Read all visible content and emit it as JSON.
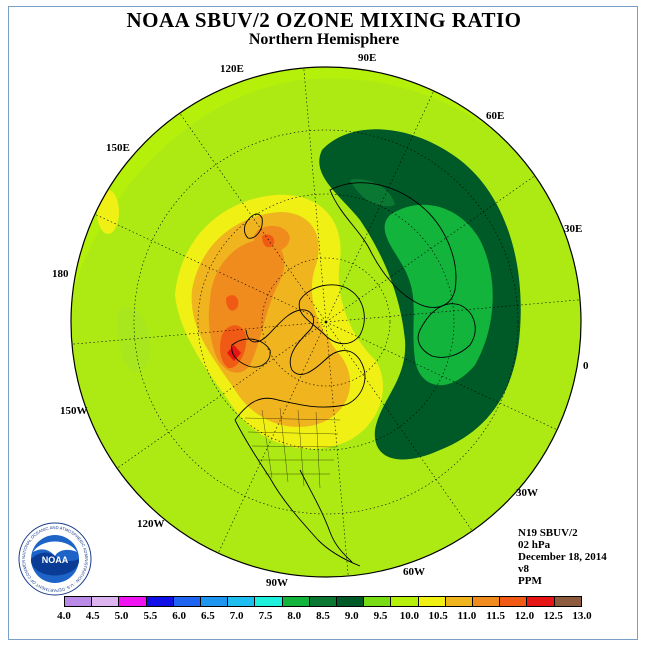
{
  "title": "NOAA SBUV/2 OZONE MIXING RATIO",
  "subtitle": "Northern Hemisphere",
  "longitude_labels": {
    "l90e": "90E",
    "l60e": "60E",
    "l30e": "30E",
    "l0": "0",
    "l30w": "30W",
    "l60w": "60W",
    "l90w": "90W",
    "l120w": "120W",
    "l150w": "150W",
    "l180": "180",
    "l150e": "150E",
    "l120e": "120E"
  },
  "info": {
    "satellite": "N19 SBUV/2",
    "level": "02 hPa",
    "date": "December 18, 2014",
    "version": "v8",
    "units": "PPM"
  },
  "logo": {
    "text": "NOAA",
    "ring_text": "NATIONAL OCEANIC AND ATMOSPHERIC ADMINISTRATION · U.S. DEPARTMENT OF COMMERCE"
  },
  "colorbar": {
    "ticks": [
      "4.0",
      "4.5",
      "5.0",
      "5.5",
      "6.0",
      "6.5",
      "7.0",
      "7.5",
      "8.0",
      "8.5",
      "9.0",
      "9.5",
      "10.0",
      "10.5",
      "11.0",
      "11.5",
      "12.0",
      "12.5",
      "13.0"
    ],
    "colors": [
      "#b98ae6",
      "#dcb4f0",
      "#f014f0",
      "#1010e6",
      "#1e64f0",
      "#1e96f0",
      "#1ebef0",
      "#1ef0dc",
      "#12b43c",
      "#0a7832",
      "#005a28",
      "#78dc14",
      "#b4f00a",
      "#f0f014",
      "#f0b41e",
      "#f08c1e",
      "#f05a14",
      "#e61414",
      "#8c5a3c"
    ],
    "min": 4.0,
    "max": 13.0
  },
  "map": {
    "background_level_color": "#a8e61e",
    "ozone_max_region": "12.0-12.5 over Alaska/Pacific",
    "ozone_min_region": "8.5-9.0 over Eurasia/Atlantic"
  }
}
